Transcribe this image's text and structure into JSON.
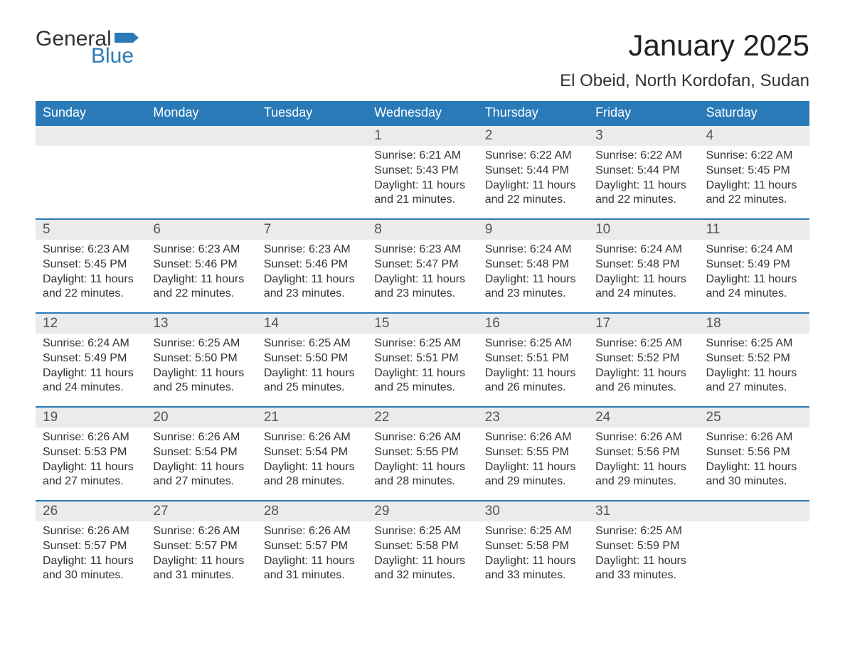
{
  "brand": {
    "word1": "General",
    "word2": "Blue",
    "flag_color": "#2a7ab8"
  },
  "title": "January 2025",
  "subtitle": "El Obeid, North Kordofan, Sudan",
  "colors": {
    "header_bg": "#2a7ab8",
    "header_text": "#ffffff",
    "daynum_bg": "#ebebeb",
    "row_border": "#2a7ab8",
    "body_text": "#333333",
    "page_bg": "#ffffff"
  },
  "typography": {
    "title_fontsize": 42,
    "subtitle_fontsize": 24,
    "header_fontsize": 18,
    "daynum_fontsize": 19,
    "cell_fontsize": 16
  },
  "days_of_week": [
    "Sunday",
    "Monday",
    "Tuesday",
    "Wednesday",
    "Thursday",
    "Friday",
    "Saturday"
  ],
  "weeks": [
    [
      null,
      null,
      null,
      {
        "n": "1",
        "sunrise": "6:21 AM",
        "sunset": "5:43 PM",
        "daylight": "11 hours and 21 minutes."
      },
      {
        "n": "2",
        "sunrise": "6:22 AM",
        "sunset": "5:44 PM",
        "daylight": "11 hours and 22 minutes."
      },
      {
        "n": "3",
        "sunrise": "6:22 AM",
        "sunset": "5:44 PM",
        "daylight": "11 hours and 22 minutes."
      },
      {
        "n": "4",
        "sunrise": "6:22 AM",
        "sunset": "5:45 PM",
        "daylight": "11 hours and 22 minutes."
      }
    ],
    [
      {
        "n": "5",
        "sunrise": "6:23 AM",
        "sunset": "5:45 PM",
        "daylight": "11 hours and 22 minutes."
      },
      {
        "n": "6",
        "sunrise": "6:23 AM",
        "sunset": "5:46 PM",
        "daylight": "11 hours and 22 minutes."
      },
      {
        "n": "7",
        "sunrise": "6:23 AM",
        "sunset": "5:46 PM",
        "daylight": "11 hours and 23 minutes."
      },
      {
        "n": "8",
        "sunrise": "6:23 AM",
        "sunset": "5:47 PM",
        "daylight": "11 hours and 23 minutes."
      },
      {
        "n": "9",
        "sunrise": "6:24 AM",
        "sunset": "5:48 PM",
        "daylight": "11 hours and 23 minutes."
      },
      {
        "n": "10",
        "sunrise": "6:24 AM",
        "sunset": "5:48 PM",
        "daylight": "11 hours and 24 minutes."
      },
      {
        "n": "11",
        "sunrise": "6:24 AM",
        "sunset": "5:49 PM",
        "daylight": "11 hours and 24 minutes."
      }
    ],
    [
      {
        "n": "12",
        "sunrise": "6:24 AM",
        "sunset": "5:49 PM",
        "daylight": "11 hours and 24 minutes."
      },
      {
        "n": "13",
        "sunrise": "6:25 AM",
        "sunset": "5:50 PM",
        "daylight": "11 hours and 25 minutes."
      },
      {
        "n": "14",
        "sunrise": "6:25 AM",
        "sunset": "5:50 PM",
        "daylight": "11 hours and 25 minutes."
      },
      {
        "n": "15",
        "sunrise": "6:25 AM",
        "sunset": "5:51 PM",
        "daylight": "11 hours and 25 minutes."
      },
      {
        "n": "16",
        "sunrise": "6:25 AM",
        "sunset": "5:51 PM",
        "daylight": "11 hours and 26 minutes."
      },
      {
        "n": "17",
        "sunrise": "6:25 AM",
        "sunset": "5:52 PM",
        "daylight": "11 hours and 26 minutes."
      },
      {
        "n": "18",
        "sunrise": "6:25 AM",
        "sunset": "5:52 PM",
        "daylight": "11 hours and 27 minutes."
      }
    ],
    [
      {
        "n": "19",
        "sunrise": "6:26 AM",
        "sunset": "5:53 PM",
        "daylight": "11 hours and 27 minutes."
      },
      {
        "n": "20",
        "sunrise": "6:26 AM",
        "sunset": "5:54 PM",
        "daylight": "11 hours and 27 minutes."
      },
      {
        "n": "21",
        "sunrise": "6:26 AM",
        "sunset": "5:54 PM",
        "daylight": "11 hours and 28 minutes."
      },
      {
        "n": "22",
        "sunrise": "6:26 AM",
        "sunset": "5:55 PM",
        "daylight": "11 hours and 28 minutes."
      },
      {
        "n": "23",
        "sunrise": "6:26 AM",
        "sunset": "5:55 PM",
        "daylight": "11 hours and 29 minutes."
      },
      {
        "n": "24",
        "sunrise": "6:26 AM",
        "sunset": "5:56 PM",
        "daylight": "11 hours and 29 minutes."
      },
      {
        "n": "25",
        "sunrise": "6:26 AM",
        "sunset": "5:56 PM",
        "daylight": "11 hours and 30 minutes."
      }
    ],
    [
      {
        "n": "26",
        "sunrise": "6:26 AM",
        "sunset": "5:57 PM",
        "daylight": "11 hours and 30 minutes."
      },
      {
        "n": "27",
        "sunrise": "6:26 AM",
        "sunset": "5:57 PM",
        "daylight": "11 hours and 31 minutes."
      },
      {
        "n": "28",
        "sunrise": "6:26 AM",
        "sunset": "5:57 PM",
        "daylight": "11 hours and 31 minutes."
      },
      {
        "n": "29",
        "sunrise": "6:25 AM",
        "sunset": "5:58 PM",
        "daylight": "11 hours and 32 minutes."
      },
      {
        "n": "30",
        "sunrise": "6:25 AM",
        "sunset": "5:58 PM",
        "daylight": "11 hours and 33 minutes."
      },
      {
        "n": "31",
        "sunrise": "6:25 AM",
        "sunset": "5:59 PM",
        "daylight": "11 hours and 33 minutes."
      },
      null
    ]
  ],
  "labels": {
    "sunrise": "Sunrise:",
    "sunset": "Sunset:",
    "daylight": "Daylight:"
  }
}
